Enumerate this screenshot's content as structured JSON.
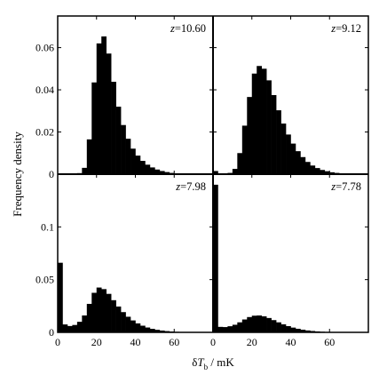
{
  "chart_data": {
    "type": "bar",
    "layout": "2x2 panels, shared axes",
    "ylabel": "Frequency density",
    "xlabel": {
      "prefix": "δ",
      "var": "T",
      "sub": "b",
      "unit": " / mK"
    },
    "xlim": [
      0,
      80
    ],
    "xticks": [
      "0",
      "20",
      "40",
      "60"
    ],
    "bin_width": 2.5,
    "top_row": {
      "ylim": [
        0,
        0.075
      ],
      "yticks": [
        "0",
        "0.02",
        "0.04",
        "0.06"
      ]
    },
    "bottom_row": {
      "ylim": [
        0,
        0.15
      ],
      "yticks": [
        "0",
        "0.05",
        "0.1"
      ]
    },
    "grid": false,
    "panels": [
      {
        "label_var": "z",
        "label_value": "=10.60",
        "bin_starts": [
          10,
          12.5,
          15,
          17.5,
          20,
          22.5,
          25,
          27.5,
          30,
          32.5,
          35,
          37.5,
          40,
          42.5,
          45,
          47.5,
          50,
          52.5,
          55,
          57.5,
          60
        ],
        "values": [
          0.0005,
          0.003,
          0.0165,
          0.0435,
          0.062,
          0.0653,
          0.0572,
          0.0438,
          0.032,
          0.0233,
          0.0168,
          0.0121,
          0.0088,
          0.0063,
          0.0045,
          0.0032,
          0.0022,
          0.0015,
          0.001,
          0.0006,
          0.0003
        ]
      },
      {
        "label_var": "z",
        "label_value": "=9.12",
        "bin_starts": [
          0,
          2.5,
          5,
          7.5,
          10,
          12.5,
          15,
          17.5,
          20,
          22.5,
          25,
          27.5,
          30,
          32.5,
          35,
          37.5,
          40,
          42.5,
          45,
          47.5,
          50,
          52.5,
          55,
          57.5,
          60,
          62.5,
          65,
          67.5
        ],
        "values": [
          0.0015,
          0.0002,
          0.0002,
          0.0006,
          0.0025,
          0.01,
          0.023,
          0.0366,
          0.0477,
          0.0513,
          0.05,
          0.0445,
          0.0375,
          0.0303,
          0.024,
          0.0188,
          0.0145,
          0.0109,
          0.0081,
          0.0058,
          0.0041,
          0.0029,
          0.002,
          0.0014,
          0.0009,
          0.0006,
          0.0004,
          0.0002
        ]
      },
      {
        "label_var": "z",
        "label_value": "=7.98",
        "bin_starts": [
          0,
          2.5,
          5,
          7.5,
          10,
          12.5,
          15,
          17.5,
          20,
          22.5,
          25,
          27.5,
          30,
          32.5,
          35,
          37.5,
          40,
          42.5,
          45,
          47.5,
          50,
          52.5,
          55,
          57.5,
          60,
          62.5,
          65,
          67.5
        ],
        "values": [
          0.066,
          0.0075,
          0.006,
          0.007,
          0.01,
          0.016,
          0.027,
          0.0375,
          0.0425,
          0.041,
          0.0365,
          0.0305,
          0.0245,
          0.0192,
          0.0148,
          0.0113,
          0.0085,
          0.0063,
          0.0046,
          0.0033,
          0.0024,
          0.0017,
          0.0012,
          0.0008,
          0.0005,
          0.0003,
          0.0002,
          0.0001
        ]
      },
      {
        "label_var": "z",
        "label_value": "=7.78",
        "bin_starts": [
          0,
          2.5,
          5,
          7.5,
          10,
          12.5,
          15,
          17.5,
          20,
          22.5,
          25,
          27.5,
          30,
          32.5,
          35,
          37.5,
          40,
          42.5,
          45,
          47.5,
          50,
          52.5,
          55,
          57.5,
          60,
          62.5,
          65,
          67.5
        ],
        "values": [
          0.14,
          0.0052,
          0.005,
          0.0058,
          0.0072,
          0.0095,
          0.0122,
          0.0145,
          0.0158,
          0.016,
          0.0152,
          0.0136,
          0.0116,
          0.0095,
          0.0076,
          0.0059,
          0.0045,
          0.0034,
          0.0025,
          0.0018,
          0.0013,
          0.0009,
          0.0006,
          0.0004,
          0.0003,
          0.0002,
          0.0001,
          0.0001
        ]
      }
    ]
  }
}
